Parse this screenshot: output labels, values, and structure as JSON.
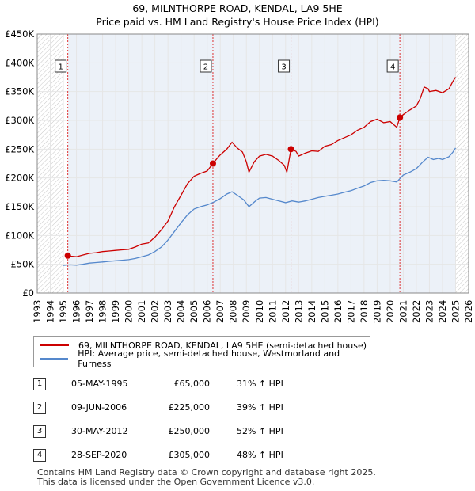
{
  "title": "69, MILNTHORPE ROAD, KENDAL, LA9 5HE",
  "subtitle": "Price paid vs. HM Land Registry's House Price Index (HPI)",
  "colors": {
    "red": "#cc0000",
    "blue": "#5588cc",
    "shade": "#dde6f3",
    "vline": "#dd3333"
  },
  "chart_data": {
    "type": "line",
    "title": "Price paid vs. HM Land Registry's House Price Index (HPI)",
    "xlim": [
      1993,
      2026
    ],
    "ylim": [
      0,
      450000
    ],
    "yticks": [
      {
        "v": 0,
        "label": "£0"
      },
      {
        "v": 50000,
        "label": "£50K"
      },
      {
        "v": 100000,
        "label": "£100K"
      },
      {
        "v": 150000,
        "label": "£150K"
      },
      {
        "v": 200000,
        "label": "£200K"
      },
      {
        "v": 250000,
        "label": "£250K"
      },
      {
        "v": 300000,
        "label": "£300K"
      },
      {
        "v": 350000,
        "label": "£350K"
      },
      {
        "v": 400000,
        "label": "£400K"
      },
      {
        "v": 450000,
        "label": "£450K"
      }
    ],
    "xticks": [
      "1993",
      "1994",
      "1995",
      "1996",
      "1997",
      "1998",
      "1999",
      "2000",
      "2001",
      "2002",
      "2003",
      "2004",
      "2005",
      "2006",
      "2007",
      "2008",
      "2009",
      "2010",
      "2011",
      "2012",
      "2013",
      "2014",
      "2015",
      "2016",
      "2017",
      "2018",
      "2019",
      "2020",
      "2021",
      "2022",
      "2023",
      "2024",
      "2025",
      "2026"
    ],
    "hatch_regions": [
      [
        1993,
        1995.0
      ],
      [
        2025.0,
        2026
      ]
    ],
    "series": [
      {
        "name": "69, MILNTHORPE ROAD, KENDAL, LA9 5HE (semi-detached house)",
        "color": "#cc0000",
        "points": [
          [
            1995.34,
            65000
          ],
          [
            1995.6,
            64000
          ],
          [
            1996,
            63000
          ],
          [
            1996.5,
            66000
          ],
          [
            1997,
            69000
          ],
          [
            1997.5,
            70000
          ],
          [
            1998,
            72000
          ],
          [
            1998.5,
            73000
          ],
          [
            1999,
            74000
          ],
          [
            1999.5,
            75000
          ],
          [
            2000,
            76000
          ],
          [
            2000.5,
            80000
          ],
          [
            2001,
            85000
          ],
          [
            2001.5,
            87000
          ],
          [
            2002,
            97000
          ],
          [
            2002.5,
            110000
          ],
          [
            2003,
            125000
          ],
          [
            2003.5,
            150000
          ],
          [
            2004,
            170000
          ],
          [
            2004.5,
            190000
          ],
          [
            2005,
            203000
          ],
          [
            2005.5,
            208000
          ],
          [
            2006,
            212000
          ],
          [
            2006.44,
            225000
          ],
          [
            2006.8,
            235000
          ],
          [
            2007,
            240000
          ],
          [
            2007.5,
            250000
          ],
          [
            2007.9,
            262000
          ],
          [
            2008.3,
            252000
          ],
          [
            2008.7,
            245000
          ],
          [
            2009,
            228000
          ],
          [
            2009.2,
            210000
          ],
          [
            2009.6,
            228000
          ],
          [
            2010,
            238000
          ],
          [
            2010.5,
            241000
          ],
          [
            2011,
            238000
          ],
          [
            2011.5,
            230000
          ],
          [
            2011.9,
            222000
          ],
          [
            2012.1,
            210000
          ],
          [
            2012.41,
            250000
          ],
          [
            2012.8,
            246000
          ],
          [
            2013,
            238000
          ],
          [
            2013.5,
            243000
          ],
          [
            2014,
            247000
          ],
          [
            2014.5,
            246000
          ],
          [
            2015,
            255000
          ],
          [
            2015.5,
            258000
          ],
          [
            2016,
            265000
          ],
          [
            2016.5,
            270000
          ],
          [
            2017,
            275000
          ],
          [
            2017.5,
            283000
          ],
          [
            2018,
            288000
          ],
          [
            2018.5,
            298000
          ],
          [
            2019,
            302000
          ],
          [
            2019.5,
            296000
          ],
          [
            2020,
            298000
          ],
          [
            2020.5,
            288000
          ],
          [
            2020.74,
            305000
          ],
          [
            2021,
            310000
          ],
          [
            2021.5,
            318000
          ],
          [
            2022,
            325000
          ],
          [
            2022.3,
            338000
          ],
          [
            2022.6,
            358000
          ],
          [
            2022.9,
            355000
          ],
          [
            2023,
            350000
          ],
          [
            2023.5,
            352000
          ],
          [
            2024,
            348000
          ],
          [
            2024.5,
            355000
          ],
          [
            2024.8,
            368000
          ],
          [
            2025.0,
            375000
          ]
        ]
      },
      {
        "name": "HPI: Average price, semi-detached house, Westmorland and Furness",
        "color": "#5588cc",
        "points": [
          [
            1995.0,
            48000
          ],
          [
            1995.5,
            49000
          ],
          [
            1996,
            48500
          ],
          [
            1996.5,
            50000
          ],
          [
            1997,
            52000
          ],
          [
            1997.5,
            53000
          ],
          [
            1998,
            54000
          ],
          [
            1998.5,
            55000
          ],
          [
            1999,
            56000
          ],
          [
            1999.5,
            57000
          ],
          [
            2000,
            58000
          ],
          [
            2000.5,
            60000
          ],
          [
            2001,
            63000
          ],
          [
            2001.5,
            66000
          ],
          [
            2002,
            72000
          ],
          [
            2002.5,
            80000
          ],
          [
            2003,
            92000
          ],
          [
            2003.5,
            107000
          ],
          [
            2004,
            122000
          ],
          [
            2004.5,
            136000
          ],
          [
            2005,
            146000
          ],
          [
            2005.5,
            150000
          ],
          [
            2006,
            153000
          ],
          [
            2006.5,
            158000
          ],
          [
            2007,
            164000
          ],
          [
            2007.5,
            172000
          ],
          [
            2007.9,
            176000
          ],
          [
            2008.3,
            170000
          ],
          [
            2008.8,
            162000
          ],
          [
            2009.2,
            150000
          ],
          [
            2009.7,
            160000
          ],
          [
            2010,
            165000
          ],
          [
            2010.5,
            166000
          ],
          [
            2011,
            163000
          ],
          [
            2011.5,
            160000
          ],
          [
            2012,
            157000
          ],
          [
            2012.5,
            160000
          ],
          [
            2013,
            158000
          ],
          [
            2013.5,
            160000
          ],
          [
            2014,
            163000
          ],
          [
            2014.5,
            166000
          ],
          [
            2015,
            168000
          ],
          [
            2015.5,
            170000
          ],
          [
            2016,
            172000
          ],
          [
            2016.5,
            175000
          ],
          [
            2017,
            178000
          ],
          [
            2017.5,
            182000
          ],
          [
            2018,
            186000
          ],
          [
            2018.5,
            192000
          ],
          [
            2019,
            195000
          ],
          [
            2019.5,
            196000
          ],
          [
            2020,
            195000
          ],
          [
            2020.5,
            193000
          ],
          [
            2021,
            205000
          ],
          [
            2021.5,
            210000
          ],
          [
            2022,
            216000
          ],
          [
            2022.5,
            228000
          ],
          [
            2022.9,
            236000
          ],
          [
            2023.3,
            232000
          ],
          [
            2023.7,
            234000
          ],
          [
            2024,
            232000
          ],
          [
            2024.5,
            237000
          ],
          [
            2024.8,
            245000
          ],
          [
            2025.0,
            252000
          ]
        ]
      }
    ],
    "markers": [
      {
        "label": "1",
        "x": 1995.34,
        "y": 65000
      },
      {
        "label": "2",
        "x": 2006.44,
        "y": 225000
      },
      {
        "label": "3",
        "x": 2012.41,
        "y": 250000
      },
      {
        "label": "4",
        "x": 2020.74,
        "y": 305000
      }
    ]
  },
  "legend": {
    "red_label": "69, MILNTHORPE ROAD, KENDAL, LA9 5HE (semi-detached house)",
    "blue_label": "HPI: Average price, semi-detached house, Westmorland and Furness"
  },
  "transactions": [
    {
      "num": "1",
      "date": "05-MAY-1995",
      "price": "£65,000",
      "hpi": "31% ↑ HPI"
    },
    {
      "num": "2",
      "date": "09-JUN-2006",
      "price": "£225,000",
      "hpi": "39% ↑ HPI"
    },
    {
      "num": "3",
      "date": "30-MAY-2012",
      "price": "£250,000",
      "hpi": "52% ↑ HPI"
    },
    {
      "num": "4",
      "date": "28-SEP-2020",
      "price": "£305,000",
      "hpi": "48% ↑ HPI"
    }
  ],
  "footer": {
    "line1": "Contains HM Land Registry data © Crown copyright and database right 2025.",
    "line2": "This data is licensed under the Open Government Licence v3.0."
  }
}
